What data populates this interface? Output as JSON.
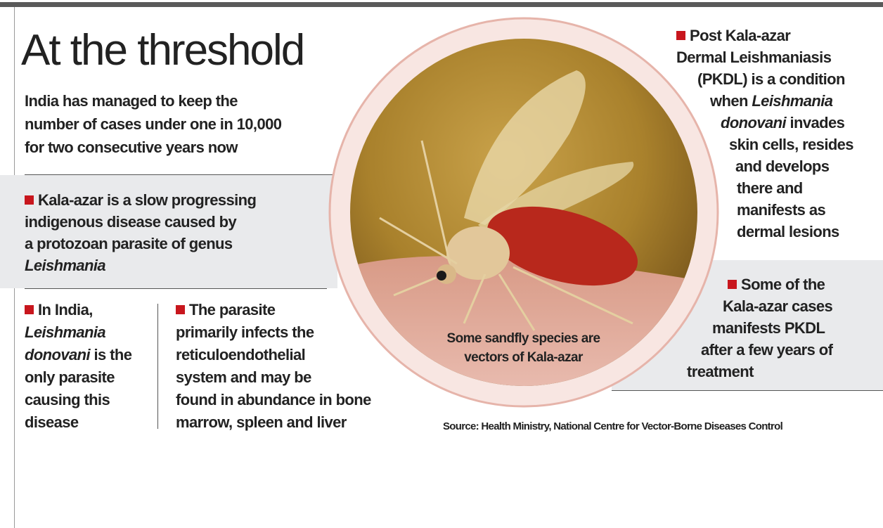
{
  "title": "At the threshold",
  "intro": [
    "India has managed to keep the",
    "number of cases under one in 10,000",
    "for two consecutive years now"
  ],
  "points": [
    {
      "lines": [
        [
          "Kala-azar is a slow progressing"
        ],
        [
          "indigenous disease caused by"
        ],
        [
          "a protozoan parasite of genus"
        ],
        [
          "Leishmania"
        ]
      ]
    },
    {
      "lines": [
        [
          "In India,"
        ],
        [
          "Leishmania"
        ],
        [
          "donovani",
          " is the"
        ],
        [
          "only parasite"
        ],
        [
          "causing this"
        ],
        [
          "disease"
        ]
      ]
    },
    {
      "lines": [
        [
          "The parasite"
        ],
        [
          "primarily infects the"
        ],
        [
          "reticuloendothelial"
        ],
        [
          "system and may be"
        ],
        [
          "found in abundance in bone"
        ],
        [
          "marrow, spleen and liver"
        ]
      ]
    },
    {
      "lines": [
        [
          "Post Kala-azar"
        ],
        [
          "Dermal Leishmaniasis"
        ],
        [
          "(PKDL) is a condition"
        ],
        [
          "when ",
          "Leishmania"
        ],
        [
          "donovani",
          " invades"
        ],
        [
          "skin cells, resides"
        ],
        [
          "and develops"
        ],
        [
          "there and"
        ],
        [
          "manifests as"
        ],
        [
          "dermal lesions"
        ]
      ]
    },
    {
      "lines": [
        [
          "Some of the"
        ],
        [
          "Kala-azar cases"
        ],
        [
          "manifests PKDL"
        ],
        [
          "after a few years of"
        ],
        [
          "treatment"
        ]
      ]
    }
  ],
  "caption": [
    "Some sandfly species are",
    "vectors of Kala-azar"
  ],
  "source": "Source: Health Ministry, National Centre for Vector-Borne Diseases Control"
}
